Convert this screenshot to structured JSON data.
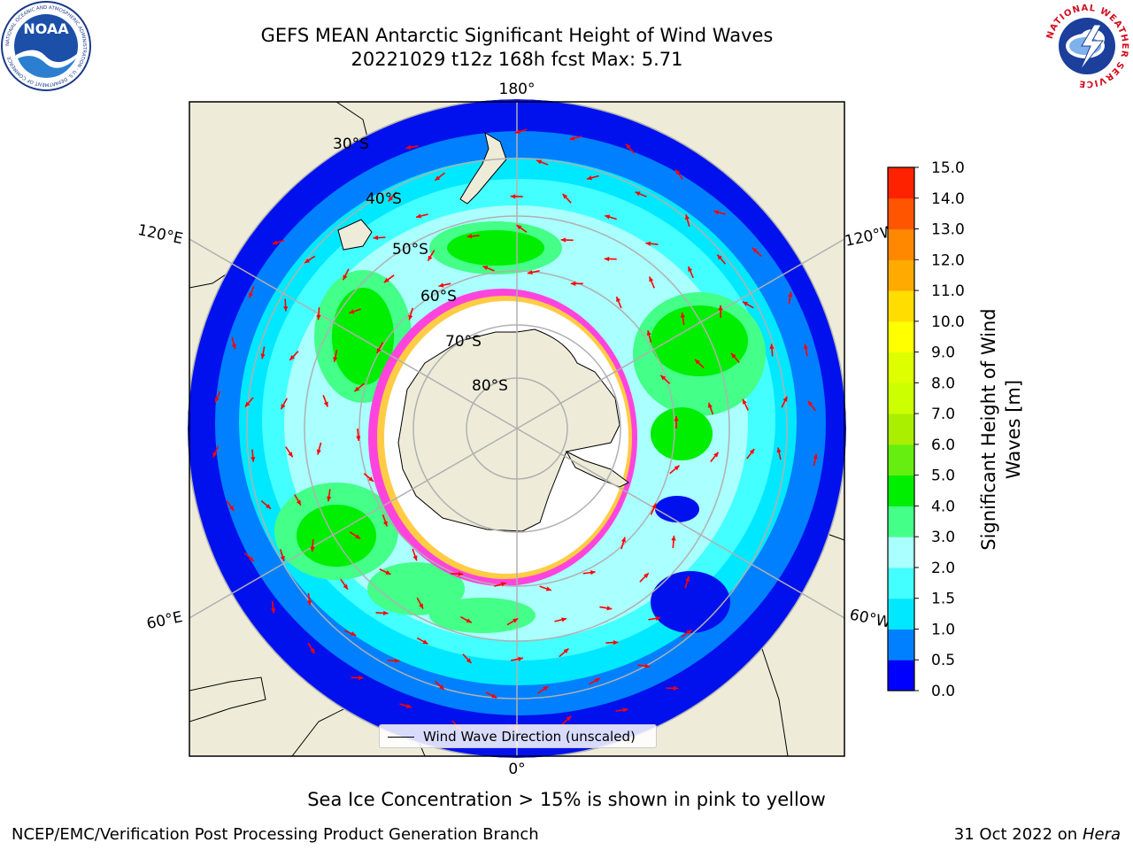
{
  "title": {
    "line1": "GEFS MEAN Antarctic Significant Height of Wind Waves",
    "line2": "20221029 t12z 168h fcst   Max: 5.71"
  },
  "logos": {
    "left": "noaa-logo",
    "right": "national-weather-service-logo",
    "left_text": "NOAA",
    "left_ring_text": "NATIONAL OCEANIC AND ATMOSPHERIC ADMINISTRATION · U.S. DEPARTMENT OF COMMERCE",
    "right_ring_text": "NATIONAL WEATHER SERVICE"
  },
  "map": {
    "projection": "south-polar-stereographic",
    "longitude_labels": {
      "top": "180°",
      "bottom": "0°",
      "upper_left": "120°E",
      "lower_left": "60°E",
      "upper_right": "120°W",
      "lower_right": "60°W"
    },
    "latitude_labels": [
      "30°S",
      "40°S",
      "50°S",
      "60°S",
      "70°S",
      "80°S"
    ],
    "colors": {
      "land": "#eeecd9",
      "ocean_low": "#0011ee",
      "ice_edge_pink": "#ff44dd",
      "ice_inner_yellow": "#ffcc44",
      "arrow": "#ff0000",
      "gridline": "#b0b0b0"
    }
  },
  "legend": {
    "label": "Wind Wave Direction (unscaled)"
  },
  "colorbar": {
    "label_line1": "Significant Height of Wind",
    "label_line2": "Waves [m]",
    "ticks": [
      "0.0",
      "0.5",
      "1.0",
      "1.5",
      "2.0",
      "3.0",
      "4.0",
      "5.0",
      "6.0",
      "7.0",
      "8.0",
      "9.0",
      "10.0",
      "11.0",
      "12.0",
      "13.0",
      "14.0",
      "15.0"
    ],
    "colors": [
      "#0000ff",
      "#0080ff",
      "#00e8ff",
      "#44ffff",
      "#aaffff",
      "#44ff88",
      "#00ee00",
      "#66ee11",
      "#aaee00",
      "#ccff00",
      "#ddff00",
      "#ffff00",
      "#ffdd00",
      "#ffaa00",
      "#ff8800",
      "#ff5500",
      "#ff2200"
    ]
  },
  "subtitle": "Sea Ice Concentration > 15% is shown in pink to yellow",
  "footer": {
    "left": "NCEP/EMC/Verification Post Processing Product Generation Branch",
    "right_date": "31 Oct 2022 on",
    "right_host": "Hera"
  }
}
